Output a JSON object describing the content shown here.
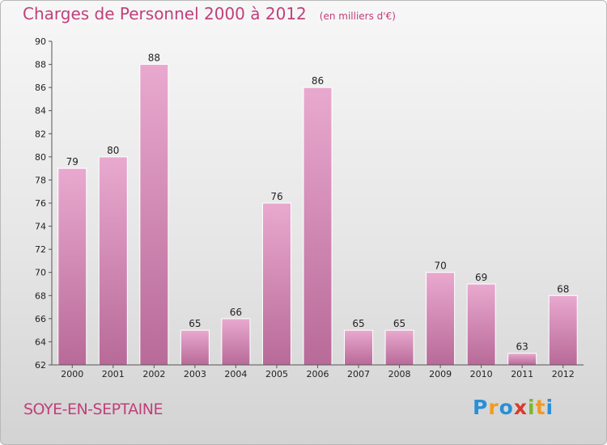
{
  "header": {
    "title": "Charges de Personnel 2000 à 2012",
    "subtitle": "(en milliers d'€)"
  },
  "footer": {
    "commune": "SOYE-EN-SEPTAINE",
    "logo": {
      "text": "Proxiti",
      "letters": [
        {
          "ch": "P",
          "color": "#2a8fd6"
        },
        {
          "ch": "r",
          "color": "#f29a1f"
        },
        {
          "ch": "o",
          "color": "#2a8fd6"
        },
        {
          "ch": "x",
          "color": "#d83a2e"
        },
        {
          "ch": "i",
          "color": "#7ab929"
        },
        {
          "ch": "t",
          "color": "#f29a1f"
        },
        {
          "ch": "i",
          "color": "#2a8fd6"
        }
      ]
    }
  },
  "colors": {
    "bar_light": "#e9a9cf",
    "bar_dark": "#b86a98",
    "text_accent": "#c0407a",
    "axis_text": "#222222"
  },
  "chart_data": {
    "type": "bar",
    "categories": [
      "2000",
      "2001",
      "2002",
      "2003",
      "2004",
      "2005",
      "2006",
      "2007",
      "2008",
      "2009",
      "2010",
      "2011",
      "2012"
    ],
    "values": [
      79,
      80,
      88,
      65,
      66,
      76,
      86,
      65,
      65,
      70,
      69,
      63,
      68
    ],
    "ylim": [
      62,
      90
    ],
    "yticks": [
      62,
      64,
      66,
      68,
      70,
      72,
      74,
      76,
      78,
      80,
      82,
      84,
      86,
      88,
      90
    ],
    "grid": false,
    "data_labels": true
  }
}
